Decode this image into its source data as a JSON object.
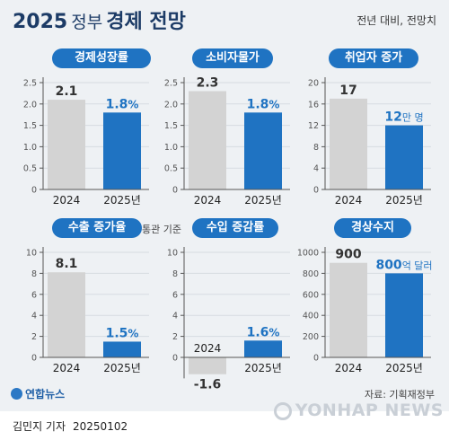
{
  "header": {
    "year": "2025",
    "subtitle": "정부",
    "main_title": "경제 전망",
    "note": "전년 대비, 전망치"
  },
  "colors": {
    "prev": "#d3d3d3",
    "cur": "#1f73c2",
    "title_bg": "#1f73c2",
    "heading": "#1c3b66"
  },
  "chart_data": [
    {
      "type": "bar",
      "title": "경제성장률",
      "categories": [
        "2024",
        "2025년"
      ],
      "values": [
        2.1,
        1.8
      ],
      "value_labels": [
        "2.1",
        "1.8"
      ],
      "value_units": [
        "",
        "%"
      ],
      "yticks": [
        0,
        0.5,
        1.0,
        1.5,
        2.0,
        2.5
      ],
      "ytick_labels": [
        "0",
        "0.5",
        "1.0",
        "1.5",
        "2.0",
        "2.5"
      ],
      "ylim": [
        0,
        2.5
      ]
    },
    {
      "type": "bar",
      "title": "소비자물가",
      "categories": [
        "2024",
        "2025년"
      ],
      "values": [
        2.3,
        1.8
      ],
      "value_labels": [
        "2.3",
        "1.8"
      ],
      "value_units": [
        "",
        "%"
      ],
      "yticks": [
        0,
        0.5,
        1.0,
        1.5,
        2.0,
        2.5
      ],
      "ytick_labels": [
        "0",
        "0.5",
        "1.0",
        "1.5",
        "2.0",
        "2.5"
      ],
      "ylim": [
        0,
        2.5
      ]
    },
    {
      "type": "bar",
      "title": "취업자 증가",
      "categories": [
        "2024",
        "2025년"
      ],
      "values": [
        17,
        12
      ],
      "value_labels": [
        "17",
        "12"
      ],
      "value_units": [
        "",
        "만 명"
      ],
      "yticks": [
        0,
        4,
        8,
        12,
        16,
        20
      ],
      "ytick_labels": [
        "0",
        "4",
        "8",
        "12",
        "16",
        "20"
      ],
      "ylim": [
        0,
        20
      ]
    },
    {
      "type": "bar",
      "title": "수출 증가율",
      "aux_label": "통관 기준",
      "categories": [
        "2024",
        "2025년"
      ],
      "values": [
        8.1,
        1.5
      ],
      "value_labels": [
        "8.1",
        "1.5"
      ],
      "value_units": [
        "",
        "%"
      ],
      "yticks": [
        0,
        2,
        4,
        6,
        8,
        10
      ],
      "ytick_labels": [
        "0",
        "2",
        "4",
        "6",
        "8",
        "10"
      ],
      "ylim": [
        0,
        10
      ]
    },
    {
      "type": "bar",
      "title": "수입 증감률",
      "categories": [
        "2024",
        "2025년"
      ],
      "values": [
        -1.6,
        1.6
      ],
      "value_labels": [
        "-1.6",
        "1.6"
      ],
      "value_units": [
        "",
        "%"
      ],
      "yticks": [
        0,
        2,
        4,
        6,
        8,
        10
      ],
      "ytick_labels": [
        "0",
        "2",
        "4",
        "6",
        "8",
        "10"
      ],
      "ylim": [
        -2,
        10
      ]
    },
    {
      "type": "bar",
      "title": "경상수지",
      "categories": [
        "2024",
        "2025년"
      ],
      "values": [
        900,
        800
      ],
      "value_labels": [
        "900",
        "800"
      ],
      "value_units": [
        "",
        "억 달러"
      ],
      "yticks": [
        0,
        200,
        400,
        600,
        800,
        1000
      ],
      "ytick_labels": [
        "0",
        "200",
        "400",
        "600",
        "800",
        "1000"
      ],
      "ylim": [
        0,
        1000
      ]
    }
  ],
  "footer": {
    "source": "자료: 기획재정부",
    "logo_text": "연합뉴스",
    "reporter": "김민지 기자",
    "date": "20250102",
    "watermark": "YONHAP NEWS"
  }
}
